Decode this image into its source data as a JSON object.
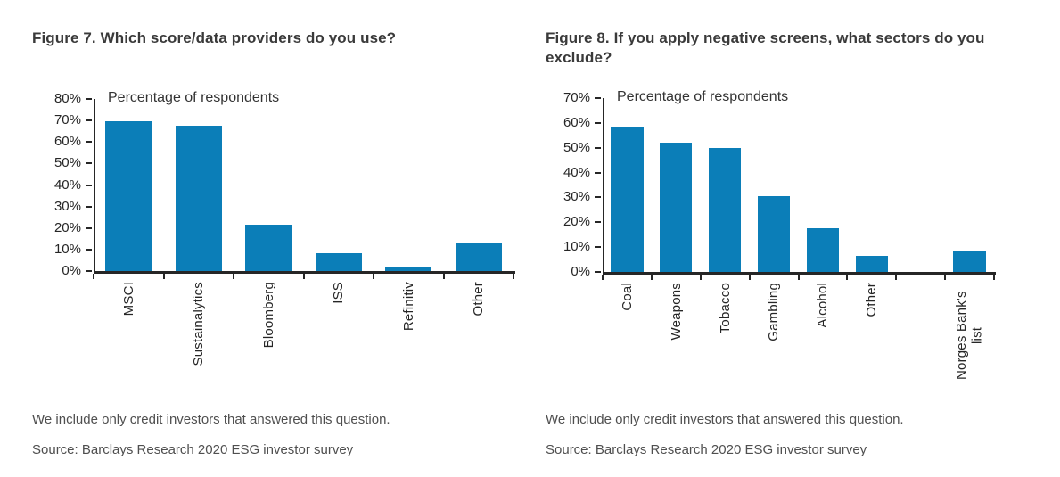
{
  "page": {
    "background": "#ffffff"
  },
  "figures": [
    {
      "title": "Figure 7. Which score/data providers do you use?",
      "note": "We include only credit investors that answered this question.",
      "source": "Source: Barclays Research 2020 ESG investor survey"
    },
    {
      "title": "Figure 8. If you apply negative screens, what sectors do you exclude?",
      "note": "We include only credit investors that answered this question.",
      "source": "Source: Barclays Research 2020 ESG investor survey"
    }
  ],
  "chart_data": [
    {
      "type": "bar",
      "title": "Figure 7. Which score/data providers do you use?",
      "inner_label": "Percentage of respondents",
      "categories": [
        "MSCI",
        "Sustainalytics",
        "Bloomberg",
        "ISS",
        "Refinitiv",
        "Other"
      ],
      "values": [
        69.5,
        67.5,
        21.5,
        8.5,
        2,
        13
      ],
      "unit": "%",
      "xlabel": "",
      "ylabel": "",
      "ylim": [
        0,
        80
      ],
      "grid": false,
      "legend": null,
      "bar_color": "#0b7eb8",
      "axis_color": "#262626",
      "yticks": [
        {
          "value": 80,
          "label": "80%"
        },
        {
          "value": 70,
          "label": "70%"
        },
        {
          "value": 60,
          "label": "60%"
        },
        {
          "value": 50,
          "label": "50%"
        },
        {
          "value": 40,
          "label": "40%"
        },
        {
          "value": 30,
          "label": "30%"
        },
        {
          "value": 20,
          "label": "20%"
        },
        {
          "value": 10,
          "label": "10%"
        },
        {
          "value": 0,
          "label": "0%"
        }
      ]
    },
    {
      "type": "bar",
      "title": "Figure 8. If you apply negative screens, what sectors do you exclude?",
      "inner_label": "Percentage of respondents",
      "categories": [
        "Coal",
        "Weapons",
        "Tobacco",
        "Gambling",
        "Alcohol",
        "Other",
        "",
        "Norges Bank's list"
      ],
      "values": [
        58.5,
        52,
        50,
        30.5,
        17.5,
        6.5,
        0,
        8.5
      ],
      "unit": "%",
      "xlabel": "",
      "ylabel": "",
      "ylim": [
        0,
        70
      ],
      "grid": false,
      "legend": null,
      "bar_color": "#0b7eb8",
      "axis_color": "#262626",
      "yticks": [
        {
          "value": 70,
          "label": "70%"
        },
        {
          "value": 60,
          "label": "60%"
        },
        {
          "value": 50,
          "label": "50%"
        },
        {
          "value": 40,
          "label": "40%"
        },
        {
          "value": 30,
          "label": "30%"
        },
        {
          "value": 20,
          "label": "20%"
        },
        {
          "value": 10,
          "label": "10%"
        },
        {
          "value": 0,
          "label": "0%"
        }
      ]
    }
  ]
}
